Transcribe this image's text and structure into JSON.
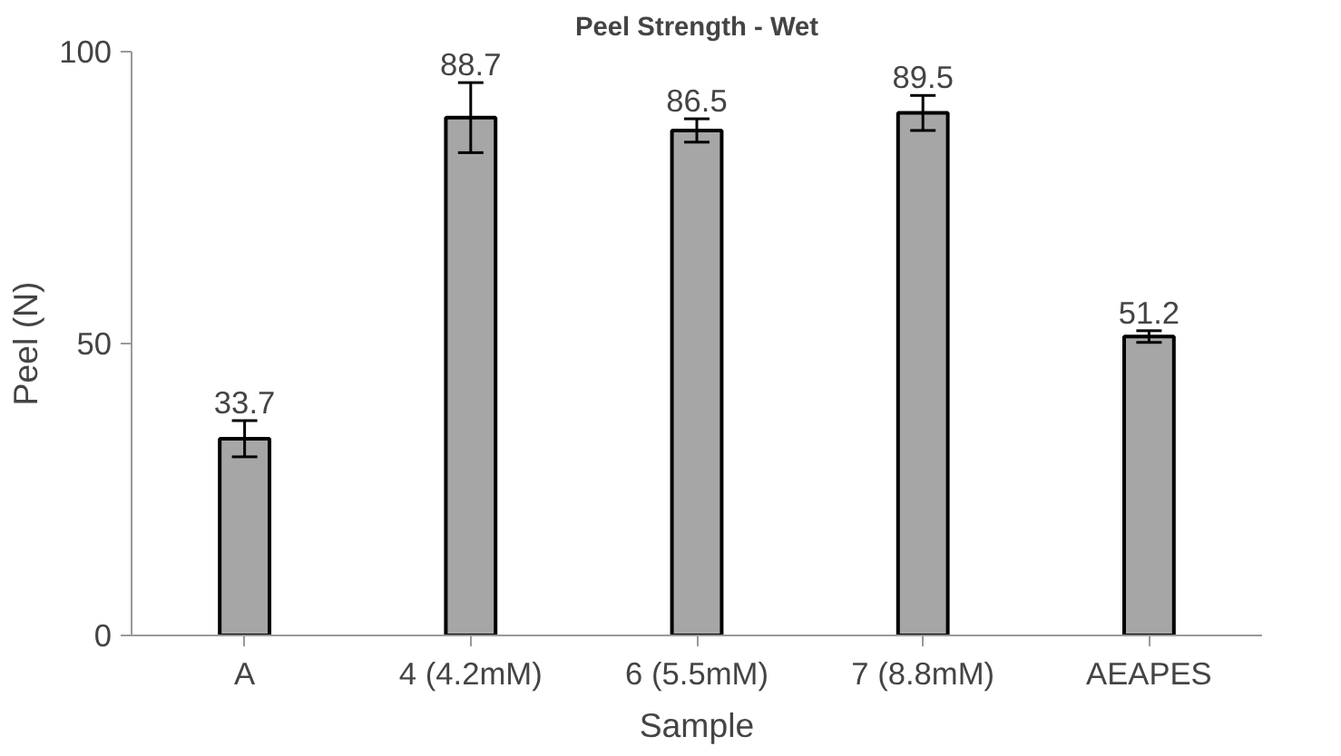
{
  "chart_data": {
    "type": "bar",
    "title": "Peel Strength - Wet",
    "xlabel": "Sample",
    "ylabel": "Peel (N)",
    "categories": [
      "A",
      "4 (4.2mM)",
      "6 (5.5mM)",
      "7 (8.8mM)",
      "AEAPES"
    ],
    "values": [
      33.7,
      88.7,
      86.5,
      89.5,
      51.2
    ],
    "errors": [
      3.1,
      6.0,
      2.0,
      3.0,
      1.0
    ],
    "color": "#a6a6a6",
    "ylim": [
      0,
      100
    ],
    "yticks": [
      0,
      50,
      100
    ],
    "data_labels": true
  }
}
